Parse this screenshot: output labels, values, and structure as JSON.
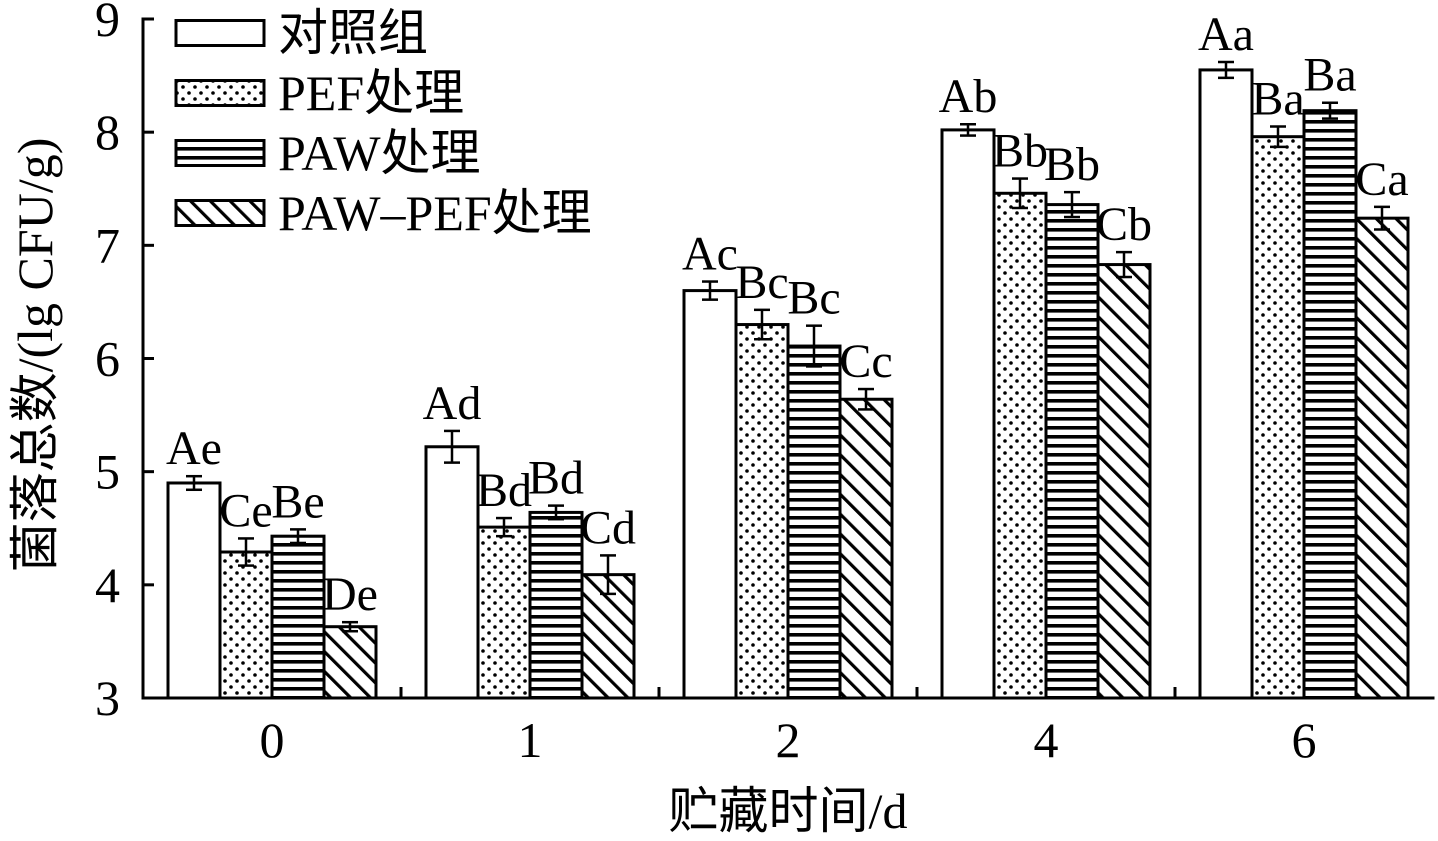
{
  "chart_data": {
    "type": "bar",
    "xlabel": "贮藏时间/d",
    "ylabel": "菌落总数/(lg CFU/g)",
    "categories": [
      "0",
      "1",
      "2",
      "4",
      "6"
    ],
    "ylim": [
      3,
      9
    ],
    "yticks": [
      3,
      4,
      5,
      6,
      7,
      8,
      9
    ],
    "grid": false,
    "legend_position": "top-left",
    "series": [
      {
        "name": "对照组",
        "pattern": "none",
        "values": [
          4.9,
          5.22,
          6.6,
          8.02,
          8.55
        ],
        "errors": [
          0.06,
          0.14,
          0.08,
          0.05,
          0.07
        ],
        "labels": [
          "Ae",
          "Ad",
          "Ac",
          "Ab",
          "Aa"
        ]
      },
      {
        "name": "PEF处理",
        "pattern": "dots",
        "values": [
          4.29,
          4.51,
          6.3,
          7.46,
          7.96
        ],
        "errors": [
          0.12,
          0.08,
          0.13,
          0.13,
          0.09
        ],
        "labels": [
          "Ce",
          "Bd",
          "Bc",
          "Bb",
          "Ba"
        ]
      },
      {
        "name": "PAW处理",
        "pattern": "horizontal-lines",
        "values": [
          4.43,
          4.64,
          6.11,
          7.36,
          8.19
        ],
        "errors": [
          0.06,
          0.06,
          0.18,
          0.11,
          0.07
        ],
        "labels": [
          "Be",
          "Bd",
          "Bc",
          "Bb",
          "Ba"
        ]
      },
      {
        "name": "PAW–PEF处理",
        "pattern": "diagonal-lines",
        "values": [
          3.63,
          4.09,
          5.64,
          6.83,
          7.24
        ],
        "errors": [
          0.04,
          0.17,
          0.09,
          0.11,
          0.1
        ],
        "labels": [
          "De",
          "Cd",
          "Cc",
          "Cb",
          "Ca"
        ]
      }
    ]
  }
}
